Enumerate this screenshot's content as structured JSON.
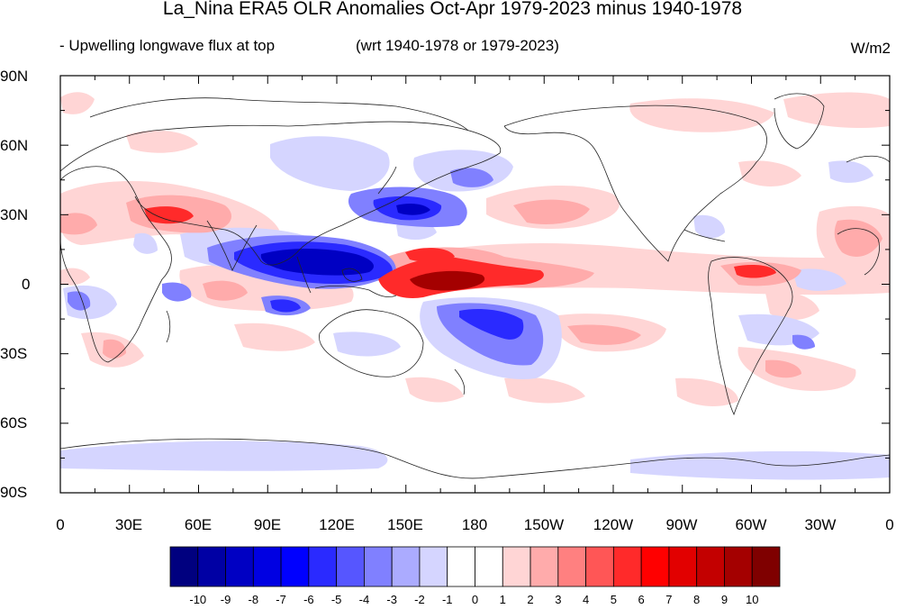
{
  "title": "La_Nina ERA5 OLR Anomalies Oct-Apr 1979-2023 minus 1940-1978",
  "subtitle_left": "- Upwelling longwave flux at top",
  "subtitle_right": "(wrt 1940-1978 or 1979-2023)",
  "units": "W/m2",
  "lat_labels": [
    "90N",
    "60N",
    "30N",
    "0",
    "30S",
    "60S",
    "90S"
  ],
  "lon_labels": [
    "0",
    "30E",
    "60E",
    "90E",
    "120E",
    "150E",
    "180",
    "150W",
    "120W",
    "90W",
    "60W",
    "30W",
    "0"
  ],
  "colorbar": {
    "labels": [
      "-10",
      "-9",
      "-8",
      "-7",
      "-6",
      "-5",
      "-4",
      "-3",
      "-2",
      "-1",
      "0",
      "1",
      "2",
      "3",
      "4",
      "5",
      "6",
      "7",
      "8",
      "9",
      "10"
    ],
    "colors": [
      "#00007f",
      "#0000a4",
      "#0000c3",
      "#0000e2",
      "#0000ff",
      "#2a2aff",
      "#5656ff",
      "#8080ff",
      "#ababff",
      "#d5d5ff",
      "#ffffff",
      "#ffffff",
      "#ffd5d5",
      "#ffabab",
      "#ff8080",
      "#ff5656",
      "#ff2a2a",
      "#ff0000",
      "#e20000",
      "#c30000",
      "#a40000",
      "#7f0000"
    ]
  }
}
